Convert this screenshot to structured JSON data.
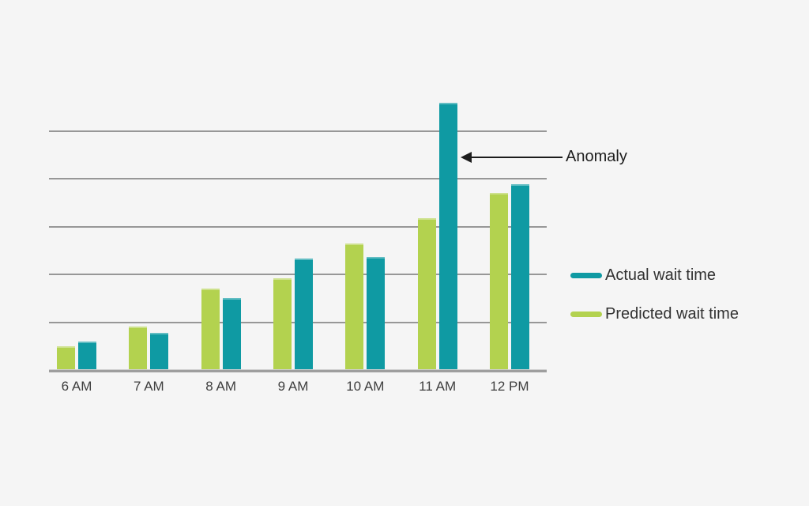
{
  "page": {
    "background": "#f5f5f5"
  },
  "chart_data": {
    "type": "bar",
    "title": "",
    "categories": [
      "6 AM",
      "7 AM",
      "8 AM",
      "9 AM",
      "10 AM",
      "11 AM",
      "12 PM"
    ],
    "series": [
      {
        "name": "Predicted wait time",
        "color": "#b3d24f",
        "values": [
          0.5,
          0.91,
          1.7,
          1.92,
          2.64,
          3.17,
          3.7
        ]
      },
      {
        "name": "Actual wait time",
        "color": "#0f9aa3",
        "values": [
          0.6,
          0.78,
          1.5,
          2.33,
          2.36,
          5.59,
          3.88
        ]
      }
    ],
    "xlabel": "",
    "ylabel": "",
    "ylim": [
      0,
      6
    ],
    "gridline_interval": 1,
    "grid": true,
    "y_axis_labels_visible": false,
    "legend_position": "right",
    "annotation": {
      "text": "Anomaly",
      "target_category": "11 AM",
      "target_series": "Actual wait time"
    }
  },
  "legend": {
    "items": [
      {
        "label": "Actual wait time",
        "color": "#0f9aa3"
      },
      {
        "label": "Predicted wait time",
        "color": "#b3d24f"
      }
    ]
  }
}
